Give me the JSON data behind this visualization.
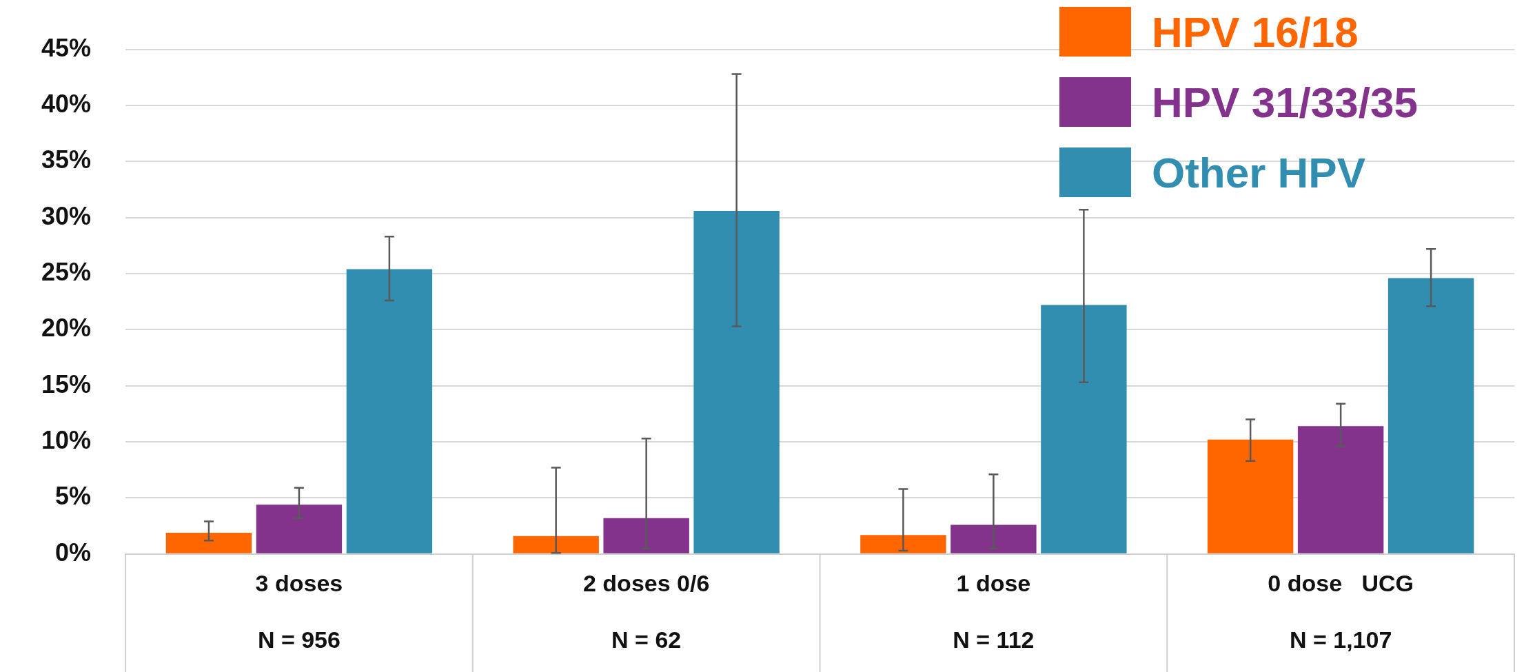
{
  "chart_data": {
    "type": "bar",
    "categories": [
      "3 doses\nN = 956",
      "2 doses 0/6\nN = 62",
      "1 dose\nN = 112",
      "0 dose   UCG\nN = 1,107"
    ],
    "series": [
      {
        "name": "HPV 16/18",
        "color": "#ff6600",
        "values": [
          1.9,
          1.6,
          1.7,
          10.2
        ],
        "errors": [
          [
            1.2,
            2.9
          ],
          [
            0.1,
            7.7
          ],
          [
            0.3,
            5.8
          ],
          [
            8.3,
            12.0
          ]
        ]
      },
      {
        "name": "HPV 31/33/35",
        "color": "#84338c",
        "values": [
          4.4,
          3.2,
          2.6,
          11.4
        ],
        "errors": [
          [
            3.2,
            5.9
          ],
          [
            0.5,
            10.3
          ],
          [
            0.5,
            7.1
          ],
          [
            9.6,
            13.4
          ]
        ]
      },
      {
        "name": "Other HPV",
        "color": "#318eb1",
        "values": [
          25.4,
          30.6,
          22.2,
          24.6
        ],
        "errors": [
          [
            22.6,
            28.3
          ],
          [
            20.3,
            42.8
          ],
          [
            15.3,
            30.7
          ],
          [
            22.1,
            27.2
          ]
        ]
      }
    ],
    "ylim": [
      0,
      45
    ],
    "yticks": [
      {
        "value": 0,
        "label": "0%"
      },
      {
        "value": 5,
        "label": "5%"
      },
      {
        "value": 10,
        "label": "10%"
      },
      {
        "value": 15,
        "label": "15%"
      },
      {
        "value": 20,
        "label": "20%"
      },
      {
        "value": 25,
        "label": "25%"
      },
      {
        "value": 30,
        "label": "30%"
      },
      {
        "value": 35,
        "label": "35%"
      },
      {
        "value": 40,
        "label": "40%"
      },
      {
        "value": 45,
        "label": "45%"
      }
    ],
    "grid": "y",
    "legend": "top right"
  }
}
